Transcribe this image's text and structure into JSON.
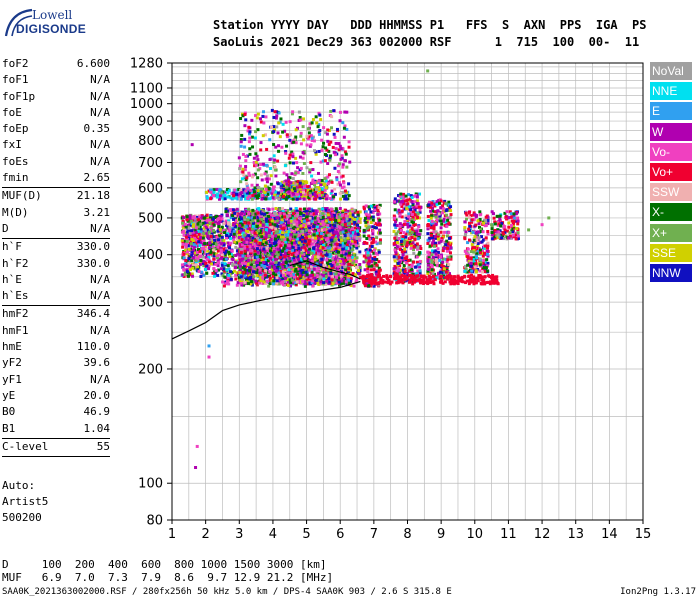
{
  "logo": {
    "line1": "Lowell",
    "line2": "DIGISONDE"
  },
  "header": {
    "row1": "Station YYYY DAY   DDD HHMMSS P1   FFS  S  AXN  PPS  IGA  PS",
    "row2": "SaoLuis 2021 Dec29 363 002000 RSF      1  715  100  00-  11"
  },
  "params_group1": [
    {
      "label": "foF2",
      "value": "6.600"
    },
    {
      "label": "foF1",
      "value": "N/A"
    },
    {
      "label": "foF1p",
      "value": "N/A"
    },
    {
      "label": "foE",
      "value": "N/A"
    },
    {
      "label": "foEp",
      "value": "0.35"
    },
    {
      "label": "fxI",
      "value": "N/A"
    },
    {
      "label": "foEs",
      "value": "N/A"
    },
    {
      "label": "fmin",
      "value": "2.65"
    }
  ],
  "params_group2": [
    {
      "label": "MUF(D)",
      "value": "21.18"
    },
    {
      "label": "M(D)",
      "value": "3.21"
    },
    {
      "label": "D",
      "value": "N/A"
    }
  ],
  "params_group3": [
    {
      "label": "h`F",
      "value": "330.0"
    },
    {
      "label": "h`F2",
      "value": "330.0"
    },
    {
      "label": "h`E",
      "value": "N/A"
    },
    {
      "label": "h`Es",
      "value": "N/A"
    }
  ],
  "params_group4": [
    {
      "label": "hmF2",
      "value": "346.4"
    },
    {
      "label": "hmF1",
      "value": "N/A"
    },
    {
      "label": "hmE",
      "value": "110.0"
    },
    {
      "label": "yF2",
      "value": "39.6"
    },
    {
      "label": "yF1",
      "value": "N/A"
    },
    {
      "label": "yE",
      "value": "20.0"
    },
    {
      "label": "B0",
      "value": "46.9"
    },
    {
      "label": "B1",
      "value": "1.04"
    }
  ],
  "params_group5": [
    {
      "label": "C-level",
      "value": "55"
    }
  ],
  "auto_block": [
    "Auto:",
    "Artist5",
    "500200"
  ],
  "legend": [
    {
      "label": "NoVal",
      "color": "#a0a0a0"
    },
    {
      "label": "NNE",
      "color": "#00e0f0"
    },
    {
      "label": "E",
      "color": "#30a0f0"
    },
    {
      "label": "W",
      "color": "#b000b0"
    },
    {
      "label": "Vo-",
      "color": "#f040c0"
    },
    {
      "label": "Vo+",
      "color": "#f00030"
    },
    {
      "label": "SSW",
      "color": "#f0b0b0"
    },
    {
      "label": "X-",
      "color": "#007000"
    },
    {
      "label": "X+",
      "color": "#70b050"
    },
    {
      "label": "SSE",
      "color": "#d0d000"
    },
    {
      "label": "NNW",
      "color": "#1010c0"
    }
  ],
  "muf_table": {
    "d_row": "D     100  200  400  600  800 1000 1500 3000 [km]",
    "muf_row": "MUF   6.9  7.0  7.3  7.9  8.6  9.7 12.9 21.2 [MHz]"
  },
  "footer": {
    "left": "SAA0K_2021363002000.RSF / 280fx256h 50 kHz 5.0 km / DPS-4 SAA0K 903 / 2.6 S 315.8 E",
    "right": "Ion2Png 1.3.17"
  },
  "chart_data": {
    "type": "scatter",
    "title": "",
    "xlabel": "",
    "ylabel": "",
    "xlim": [
      1,
      15
    ],
    "ylim_display": [
      80,
      1280
    ],
    "y_scale": "log",
    "x_ticks": [
      1,
      2,
      3,
      4,
      5,
      6,
      7,
      8,
      9,
      10,
      11,
      12,
      13,
      14,
      15
    ],
    "y_ticks": [
      80,
      100,
      200,
      300,
      400,
      500,
      600,
      700,
      800,
      900,
      1000,
      1100,
      1280
    ],
    "grid": true,
    "traces": [
      {
        "name": "",
        "desc": "O-trace F2 cluster",
        "x_range": [
          1.3,
          6.6
        ],
        "y_range": [
          330,
          560
        ],
        "density": "high"
      },
      {
        "name": "",
        "desc": "spread echoes",
        "x_range": [
          3.0,
          6.3
        ],
        "y_range": [
          560,
          950
        ],
        "density": "low"
      },
      {
        "name": "",
        "desc": "E-direction band",
        "x_range": [
          2.0,
          5.5
        ],
        "y_range": [
          560,
          600
        ],
        "density": "medium"
      },
      {
        "name": "",
        "desc": "columns",
        "x_range": [
          6.6,
          11.5
        ],
        "y_range": [
          330,
          620
        ],
        "density": "medium"
      }
    ],
    "profile_curve": {
      "x": [
        1.0,
        1.5,
        2.0,
        2.5,
        3.0,
        4.0,
        5.0,
        6.0,
        6.6
      ],
      "y": [
        240,
        252,
        265,
        285,
        295,
        308,
        318,
        328,
        340
      ]
    },
    "trace_curve": {
      "x": [
        4.5,
        5.0,
        5.5,
        6.0,
        6.3,
        6.6
      ],
      "y": [
        375,
        385,
        370,
        360,
        355,
        345
      ]
    }
  }
}
